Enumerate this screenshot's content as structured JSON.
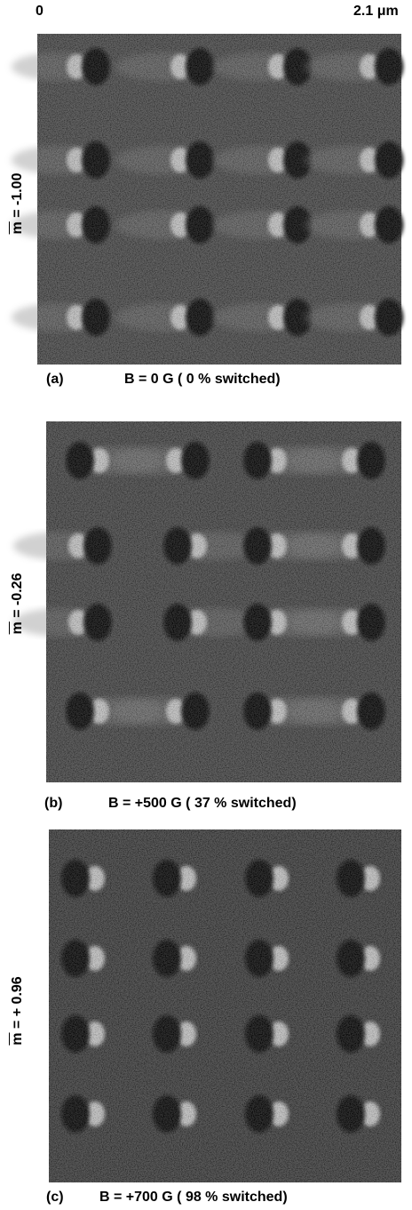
{
  "scale": {
    "start": "0",
    "end": "2.1 μm"
  },
  "panels": [
    {
      "label": "(a)",
      "caption": "B = 0 G ( 0 % switched)",
      "side_label": "m = -1.00"
    },
    {
      "label": "(b)",
      "caption": "B = +500 G ( 37 % switched)",
      "side_label": "m = -0.26"
    },
    {
      "label": "(c)",
      "caption": "B = +700 G ( 98 % switched)",
      "side_label": "m = + 0.96"
    }
  ]
}
